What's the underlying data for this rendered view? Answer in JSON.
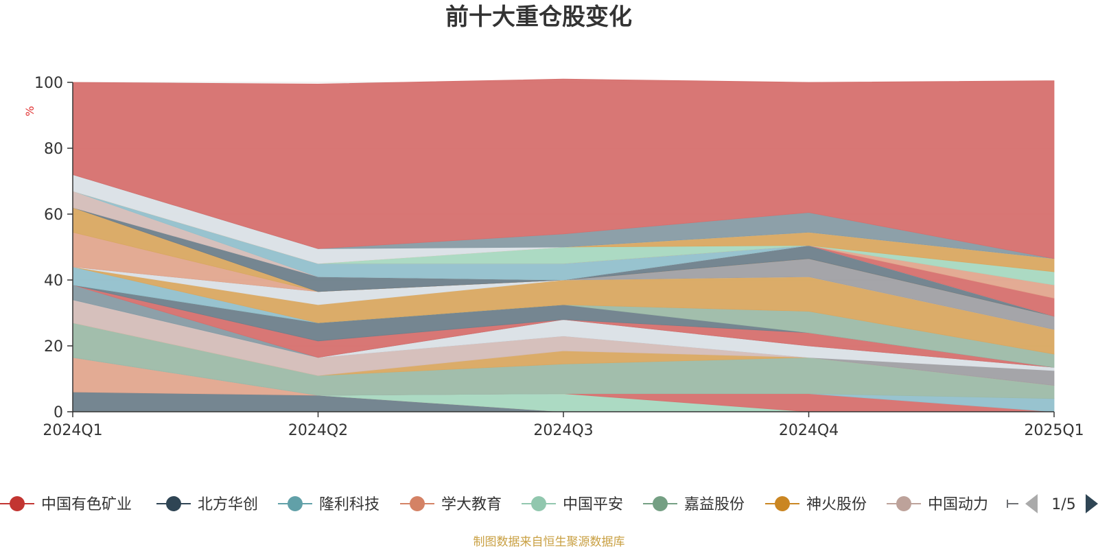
{
  "chart_data": {
    "type": "area",
    "title": "前十大重仓股变化",
    "ylabel": "%",
    "ylim": [
      0,
      100
    ],
    "yticks": [
      0,
      20,
      40,
      60,
      80,
      100
    ],
    "categories": [
      "2024Q1",
      "2024Q2",
      "2024Q3",
      "2024Q4",
      "2025Q1"
    ],
    "grid": true,
    "legend_position": "bottom",
    "legend_page": "1/5",
    "source_note": "制图数据来自恒生聚源数据库",
    "series": [
      {
        "name": "",
        "color": "#6e7f8b",
        "values": [
          6,
          5,
          0,
          0,
          0
        ]
      },
      {
        "name": "",
        "color": "#e2a68e",
        "values": [
          10.5,
          0,
          0,
          0,
          0
        ]
      },
      {
        "name": "",
        "color": "#a8d8c0",
        "values": [
          0,
          0,
          5.5,
          0,
          0
        ]
      },
      {
        "name": "",
        "color": "#d6706e",
        "values": [
          0,
          0,
          0,
          5.5,
          0
        ]
      },
      {
        "name": "",
        "color": "#92c0cc",
        "values": [
          0,
          0,
          0,
          0,
          4
        ]
      },
      {
        "name": "",
        "color": "#9dbba8",
        "values": [
          10.5,
          6,
          9,
          11,
          4
        ]
      },
      {
        "name": "",
        "color": "#d9a861",
        "values": [
          0,
          0,
          4,
          0,
          0
        ]
      },
      {
        "name": "",
        "color": "#d4bdb8",
        "values": [
          7,
          5.5,
          4.5,
          0,
          0
        ]
      },
      {
        "name": "",
        "color": "#a0a0a4",
        "values": [
          0,
          0,
          0,
          0,
          4.5
        ]
      },
      {
        "name": "",
        "color": "#dae0e6",
        "values": [
          0,
          0,
          5,
          3.5,
          1
        ]
      },
      {
        "name": "",
        "color": "#879ba4",
        "values": [
          4.5,
          0,
          0,
          0,
          0
        ]
      },
      {
        "name": "",
        "color": "#d6706e",
        "values": [
          0,
          5,
          0,
          4,
          0
        ]
      },
      {
        "name": "",
        "color": "#6e7f8b",
        "values": [
          0,
          5.5,
          4.5,
          0,
          0
        ]
      },
      {
        "name": "",
        "color": "#9dbba8",
        "values": [
          0,
          0,
          0,
          6.5,
          4
        ]
      },
      {
        "name": "",
        "color": "#92c0cc",
        "values": [
          5.5,
          0,
          0,
          0,
          0
        ]
      },
      {
        "name": "",
        "color": "#d9a861",
        "values": [
          0,
          5.5,
          7.5,
          10.5,
          7.5
        ]
      },
      {
        "name": "",
        "color": "#dae0e6",
        "values": [
          0,
          4,
          0,
          0,
          0
        ]
      },
      {
        "name": "",
        "color": "#a0a0a4",
        "values": [
          0,
          0,
          0,
          5.5,
          4
        ]
      },
      {
        "name": "",
        "color": "#e2a68e",
        "values": [
          10.5,
          0,
          0,
          0,
          0
        ]
      },
      {
        "name": "",
        "color": "#d9a861",
        "values": [
          7.5,
          0,
          0,
          0,
          0
        ]
      },
      {
        "name": "",
        "color": "#6e7f8b",
        "values": [
          0,
          4.5,
          0,
          4,
          0
        ]
      },
      {
        "name": "",
        "color": "#879ba4",
        "values": [
          0,
          0,
          0,
          0,
          0
        ]
      },
      {
        "name": "",
        "color": "#d4bdb8",
        "values": [
          5,
          0,
          0,
          0,
          0
        ]
      },
      {
        "name": "",
        "color": "#92c0cc",
        "values": [
          0,
          4,
          5,
          0,
          0
        ]
      },
      {
        "name": "",
        "color": "#d6706e",
        "values": [
          0,
          0,
          0,
          0,
          5.5
        ]
      },
      {
        "name": "",
        "color": "#e2a68e",
        "values": [
          0,
          0,
          0,
          0,
          4
        ]
      },
      {
        "name": "",
        "color": "#a8d8c0",
        "values": [
          0,
          0,
          5,
          0,
          4
        ]
      },
      {
        "name": "",
        "color": "#d9a861",
        "values": [
          0,
          0,
          0,
          4,
          4
        ]
      },
      {
        "name": "",
        "color": "#dae0e6",
        "values": [
          5,
          4.5,
          0,
          0,
          0
        ]
      },
      {
        "name": "",
        "color": "#879ba4",
        "values": [
          0,
          0,
          4,
          6,
          0
        ]
      },
      {
        "name": "",
        "color": "#d6706e",
        "values": [
          28,
          50,
          47,
          39.5,
          54
        ]
      }
    ]
  },
  "legend": {
    "items": [
      {
        "label": "中国有色矿业",
        "color": "#c23531"
      },
      {
        "label": "北方华创",
        "color": "#2f4554"
      },
      {
        "label": "隆利科技",
        "color": "#61a0a8"
      },
      {
        "label": "学大教育",
        "color": "#d48265"
      },
      {
        "label": "中国平安",
        "color": "#91c7ae"
      },
      {
        "label": "嘉益股份",
        "color": "#749f83"
      },
      {
        "label": "神火股份",
        "color": "#ca8622"
      },
      {
        "label": "中国动力",
        "color": "#bda29a"
      }
    ],
    "page": "1/5"
  }
}
